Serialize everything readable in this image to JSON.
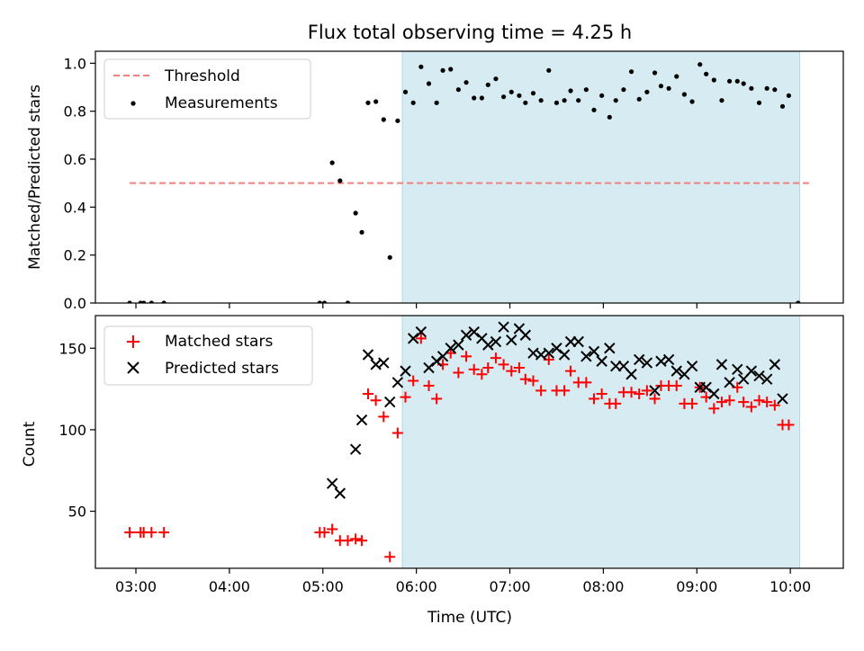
{
  "figure": {
    "title": "Flux total observing time = 4.25 h",
    "xlabel": "Time (UTC)"
  },
  "chart_data": [
    {
      "type": "scatter",
      "panel": "top",
      "ylabel": "Matched/Predicted stars",
      "xlim": [
        "02:34",
        "10:34"
      ],
      "ylim": [
        0,
        1.05
      ],
      "x_ticks": [
        "03:00",
        "04:00",
        "05:00",
        "06:00",
        "07:00",
        "08:00",
        "09:00",
        "10:00"
      ],
      "y_ticks": [
        "0.0",
        "0.2",
        "0.4",
        "0.6",
        "0.8",
        "1.0"
      ],
      "y_tick_values": [
        0,
        0.2,
        0.4,
        0.6,
        0.8,
        1.0
      ],
      "shaded_span": [
        "05:51",
        "10:06"
      ],
      "threshold": {
        "value": 0.5,
        "x_range": [
          "02:56",
          "10:12"
        ],
        "color": "#f08080"
      },
      "legend": {
        "position": "top-left",
        "entries": [
          "Threshold",
          "Measurements"
        ]
      },
      "series": [
        {
          "name": "Measurements",
          "color": "#000000",
          "points": [
            [
              "02:56",
              0.0
            ],
            [
              "03:03",
              0.0
            ],
            [
              "03:05",
              0.0
            ],
            [
              "03:10",
              0.0
            ],
            [
              "03:18",
              0.0
            ],
            [
              "04:58",
              0.0
            ],
            [
              "05:01",
              0.0
            ],
            [
              "05:06",
              0.585
            ],
            [
              "05:11",
              0.51
            ],
            [
              "05:16",
              0.0
            ],
            [
              "05:21",
              0.375
            ],
            [
              "05:25",
              0.295
            ],
            [
              "05:29",
              0.835
            ],
            [
              "05:34",
              0.84
            ],
            [
              "05:39",
              0.765
            ],
            [
              "05:43",
              0.19
            ],
            [
              "05:48",
              0.76
            ],
            [
              "05:53",
              0.88
            ],
            [
              "05:58",
              0.835
            ],
            [
              "06:03",
              0.985
            ],
            [
              "06:08",
              0.915
            ],
            [
              "06:13",
              0.835
            ],
            [
              "06:17",
              0.97
            ],
            [
              "06:22",
              0.975
            ],
            [
              "06:27",
              0.89
            ],
            [
              "06:32",
              0.92
            ],
            [
              "06:37",
              0.855
            ],
            [
              "06:42",
              0.855
            ],
            [
              "06:46",
              0.91
            ],
            [
              "06:51",
              0.935
            ],
            [
              "06:56",
              0.86
            ],
            [
              "07:01",
              0.88
            ],
            [
              "07:06",
              0.865
            ],
            [
              "07:10",
              0.835
            ],
            [
              "07:15",
              0.875
            ],
            [
              "07:20",
              0.845
            ],
            [
              "07:25",
              0.97
            ],
            [
              "07:30",
              0.835
            ],
            [
              "07:35",
              0.845
            ],
            [
              "07:39",
              0.885
            ],
            [
              "07:44",
              0.845
            ],
            [
              "07:49",
              0.89
            ],
            [
              "07:54",
              0.805
            ],
            [
              "07:59",
              0.865
            ],
            [
              "08:04",
              0.775
            ],
            [
              "08:08",
              0.845
            ],
            [
              "08:13",
              0.89
            ],
            [
              "08:18",
              0.965
            ],
            [
              "08:23",
              0.85
            ],
            [
              "08:28",
              0.88
            ],
            [
              "08:33",
              0.96
            ],
            [
              "08:37",
              0.905
            ],
            [
              "08:42",
              0.895
            ],
            [
              "08:47",
              0.945
            ],
            [
              "08:52",
              0.87
            ],
            [
              "08:57",
              0.84
            ],
            [
              "09:02",
              0.995
            ],
            [
              "09:06",
              0.955
            ],
            [
              "09:11",
              0.93
            ],
            [
              "09:16",
              0.845
            ],
            [
              "09:21",
              0.925
            ],
            [
              "09:26",
              0.925
            ],
            [
              "09:30",
              0.915
            ],
            [
              "09:35",
              0.895
            ],
            [
              "09:40",
              0.835
            ],
            [
              "09:45",
              0.895
            ],
            [
              "09:50",
              0.89
            ],
            [
              "09:55",
              0.82
            ],
            [
              "09:59",
              0.865
            ],
            [
              "10:05",
              0.0
            ]
          ]
        }
      ]
    },
    {
      "type": "scatter",
      "panel": "bottom",
      "ylabel": "Count",
      "xlim": [
        "02:34",
        "10:34"
      ],
      "ylim": [
        15,
        170
      ],
      "x_ticks": [
        "03:00",
        "04:00",
        "05:00",
        "06:00",
        "07:00",
        "08:00",
        "09:00",
        "10:00"
      ],
      "y_ticks": [
        "50",
        "100",
        "150"
      ],
      "y_tick_values": [
        50,
        100,
        150
      ],
      "shaded_span": [
        "05:51",
        "10:06"
      ],
      "legend": {
        "position": "top-left",
        "entries": [
          "Matched stars",
          "Predicted stars"
        ]
      },
      "series": [
        {
          "name": "Matched stars",
          "color": "#ff0000",
          "marker": "plus",
          "points": [
            [
              "02:56",
              37
            ],
            [
              "03:03",
              37
            ],
            [
              "03:05",
              37
            ],
            [
              "03:10",
              37
            ],
            [
              "03:18",
              37
            ],
            [
              "04:58",
              37
            ],
            [
              "05:01",
              37
            ],
            [
              "05:06",
              39
            ],
            [
              "05:11",
              32
            ],
            [
              "05:16",
              32
            ],
            [
              "05:21",
              33
            ],
            [
              "05:25",
              32
            ],
            [
              "05:29",
              122
            ],
            [
              "05:34",
              118
            ],
            [
              "05:39",
              108
            ],
            [
              "05:43",
              22
            ],
            [
              "05:48",
              98
            ],
            [
              "05:53",
              120
            ],
            [
              "05:58",
              130
            ],
            [
              "06:03",
              156
            ],
            [
              "06:08",
              127
            ],
            [
              "06:13",
              119
            ],
            [
              "06:17",
              140
            ],
            [
              "06:22",
              147
            ],
            [
              "06:27",
              135
            ],
            [
              "06:32",
              145
            ],
            [
              "06:37",
              137
            ],
            [
              "06:42",
              134
            ],
            [
              "06:46",
              138
            ],
            [
              "06:51",
              144
            ],
            [
              "06:56",
              140
            ],
            [
              "07:01",
              136
            ],
            [
              "07:06",
              138
            ],
            [
              "07:10",
              131
            ],
            [
              "07:15",
              130
            ],
            [
              "07:20",
              124
            ],
            [
              "07:25",
              143
            ],
            [
              "07:30",
              124
            ],
            [
              "07:35",
              124
            ],
            [
              "07:39",
              136
            ],
            [
              "07:44",
              129
            ],
            [
              "07:49",
              129
            ],
            [
              "07:54",
              119
            ],
            [
              "07:59",
              122
            ],
            [
              "08:04",
              116
            ],
            [
              "08:08",
              116
            ],
            [
              "08:13",
              123
            ],
            [
              "08:18",
              123
            ],
            [
              "08:23",
              122
            ],
            [
              "08:28",
              124
            ],
            [
              "08:33",
              119
            ],
            [
              "08:37",
              127
            ],
            [
              "08:42",
              127
            ],
            [
              "08:47",
              127
            ],
            [
              "08:52",
              116
            ],
            [
              "08:57",
              116
            ],
            [
              "09:02",
              126
            ],
            [
              "09:06",
              120
            ],
            [
              "09:11",
              113
            ],
            [
              "09:16",
              117
            ],
            [
              "09:21",
              118
            ],
            [
              "09:26",
              126
            ],
            [
              "09:30",
              117
            ],
            [
              "09:35",
              114
            ],
            [
              "09:40",
              118
            ],
            [
              "09:45",
              117
            ],
            [
              "09:50",
              115
            ],
            [
              "09:55",
              103
            ],
            [
              "09:59",
              103
            ]
          ]
        },
        {
          "name": "Predicted stars",
          "color": "#000000",
          "marker": "x",
          "points": [
            [
              "05:06",
              67
            ],
            [
              "05:11",
              61
            ],
            [
              "05:21",
              88
            ],
            [
              "05:25",
              106
            ],
            [
              "05:29",
              146
            ],
            [
              "05:34",
              140
            ],
            [
              "05:39",
              141
            ],
            [
              "05:43",
              117
            ],
            [
              "05:48",
              129
            ],
            [
              "05:53",
              136
            ],
            [
              "05:58",
              156
            ],
            [
              "06:03",
              160
            ],
            [
              "06:08",
              138
            ],
            [
              "06:13",
              142
            ],
            [
              "06:17",
              145
            ],
            [
              "06:22",
              150
            ],
            [
              "06:27",
              152
            ],
            [
              "06:32",
              158
            ],
            [
              "06:37",
              160
            ],
            [
              "06:42",
              156
            ],
            [
              "06:46",
              152
            ],
            [
              "06:51",
              154
            ],
            [
              "06:56",
              163
            ],
            [
              "07:01",
              155
            ],
            [
              "07:06",
              162
            ],
            [
              "07:10",
              158
            ],
            [
              "07:15",
              147
            ],
            [
              "07:20",
              146
            ],
            [
              "07:25",
              147
            ],
            [
              "07:30",
              150
            ],
            [
              "07:35",
              146
            ],
            [
              "07:39",
              154
            ],
            [
              "07:44",
              154
            ],
            [
              "07:49",
              145
            ],
            [
              "07:54",
              148
            ],
            [
              "07:59",
              142
            ],
            [
              "08:04",
              150
            ],
            [
              "08:08",
              139
            ],
            [
              "08:13",
              139
            ],
            [
              "08:18",
              134
            ],
            [
              "08:23",
              143
            ],
            [
              "08:28",
              141
            ],
            [
              "08:33",
              124
            ],
            [
              "08:37",
              142
            ],
            [
              "08:42",
              143
            ],
            [
              "08:47",
              136
            ],
            [
              "08:52",
              134
            ],
            [
              "08:57",
              139
            ],
            [
              "09:02",
              126
            ],
            [
              "09:06",
              126
            ],
            [
              "09:11",
              122
            ],
            [
              "09:16",
              140
            ],
            [
              "09:21",
              129
            ],
            [
              "09:26",
              137
            ],
            [
              "09:30",
              131
            ],
            [
              "09:35",
              136
            ],
            [
              "09:40",
              133
            ],
            [
              "09:45",
              131
            ],
            [
              "09:50",
              140
            ],
            [
              "09:55",
              119
            ]
          ]
        }
      ]
    }
  ]
}
